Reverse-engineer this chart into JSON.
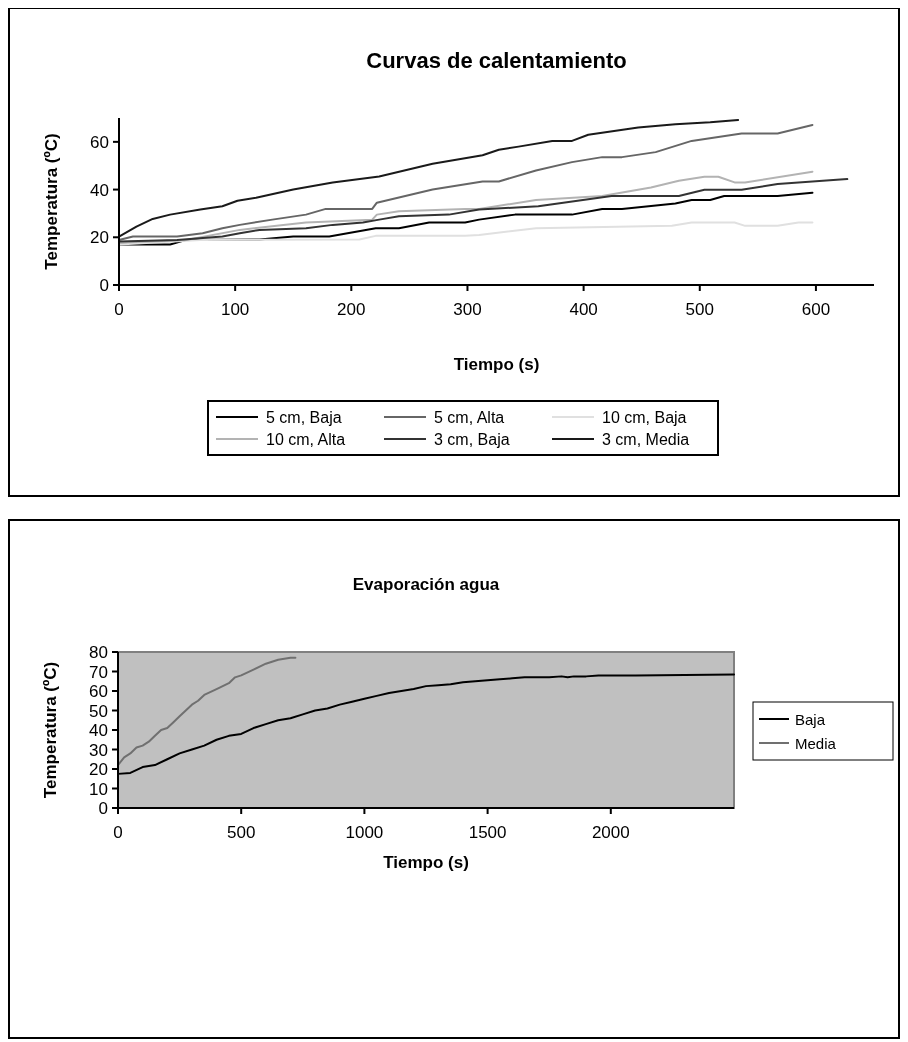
{
  "chart_data": [
    {
      "type": "line",
      "title": "Curvas de calentamiento",
      "xlabel": "Tiempo (s)",
      "ylabel": "Temperatura (ºC)",
      "xlim": [
        0,
        650
      ],
      "xticks": [
        0,
        100,
        200,
        300,
        400,
        500,
        600
      ],
      "ylim": [
        0,
        70
      ],
      "yticks": [
        0,
        20,
        40,
        60
      ],
      "legend": "bottom",
      "series": [
        {
          "name": "5 cm, Baja",
          "color": "#000000",
          "x": [
            0,
            44,
            58,
            121,
            150,
            181,
            221,
            241,
            267,
            298,
            310,
            341,
            390,
            416,
            433,
            479,
            493,
            509,
            521,
            567,
            597
          ],
          "values": [
            17,
            17,
            18.9,
            19.1,
            20.3,
            20.3,
            23.8,
            23.8,
            26.2,
            26.2,
            27.4,
            29.5,
            29.5,
            31.9,
            31.9,
            34.2,
            35.6,
            35.6,
            37.3,
            37.3,
            38.7
          ]
        },
        {
          "name": "5 cm, Alta",
          "color": "#666666",
          "x": [
            0,
            12,
            50,
            72,
            89,
            104,
            132,
            161,
            178,
            218,
            222,
            270,
            313,
            327,
            359,
            390,
            416,
            433,
            462,
            493,
            536,
            567,
            597
          ],
          "values": [
            18.9,
            20.3,
            20.3,
            21.7,
            23.8,
            25.2,
            27.4,
            29.5,
            31.9,
            31.9,
            34.5,
            40,
            43.4,
            43.4,
            48,
            51.5,
            53.6,
            53.6,
            55.7,
            60.4,
            63.5,
            63.5,
            67.1
          ]
        },
        {
          "name": "10 cm, Baja",
          "color": "#e0e0e0",
          "x": [
            0,
            70,
            207,
            221,
            298,
            310,
            359,
            476,
            493,
            530,
            539,
            567,
            585,
            597
          ],
          "values": [
            17,
            18.9,
            19.1,
            20.6,
            20.6,
            21,
            23.8,
            24.8,
            26.2,
            26.2,
            24.8,
            24.8,
            26.2,
            26.2
          ]
        },
        {
          "name": "10 cm, Alta",
          "color": "#b3b3b3",
          "x": [
            0,
            58,
            104,
            161,
            218,
            222,
            241,
            298,
            310,
            359,
            416,
            458,
            482,
            504,
            516,
            530,
            539,
            597
          ],
          "values": [
            17.7,
            18.9,
            23.1,
            26.2,
            27.4,
            29.5,
            30.9,
            31.9,
            31.9,
            35.6,
            37.3,
            40.9,
            43.7,
            45.4,
            45.4,
            43,
            43,
            47.5
          ]
        },
        {
          "name": "3 cm, Baja",
          "color": "#333333",
          "x": [
            0,
            50,
            89,
            104,
            121,
            161,
            184,
            210,
            224,
            241,
            284,
            310,
            361,
            424,
            482,
            504,
            536,
            567,
            627
          ],
          "values": [
            18.2,
            18.9,
            20.3,
            21.7,
            23.1,
            23.8,
            25.2,
            26.2,
            27.4,
            28.8,
            29.5,
            31.6,
            33,
            37.3,
            37.3,
            39.9,
            39.9,
            42.3,
            44.4
          ]
        },
        {
          "name": "3 cm, Media",
          "color": "#1a1a1a",
          "x": [
            0,
            15,
            29,
            44,
            70,
            89,
            102,
            118,
            150,
            184,
            224,
            270,
            313,
            327,
            344,
            373,
            390,
            404,
            447,
            479,
            509,
            533
          ],
          "values": [
            20.3,
            24.5,
            27.7,
            29.5,
            31.6,
            33,
            35.3,
            36.6,
            40,
            43,
            45.5,
            50.8,
            54.4,
            56.7,
            58,
            60.4,
            60.4,
            63,
            66,
            67.4,
            68.2,
            69.2
          ]
        }
      ]
    },
    {
      "type": "line",
      "title": "Evaporación agua",
      "xlabel": "Tiempo (s)",
      "ylabel": "Temperatura (ºC)",
      "xlim": [
        0,
        2500
      ],
      "xticks": [
        0,
        500,
        1000,
        1500,
        2000
      ],
      "ylim": [
        0,
        80
      ],
      "yticks": [
        0,
        10,
        20,
        30,
        40,
        50,
        60,
        70,
        80
      ],
      "legend": "right",
      "series": [
        {
          "name": "Baja",
          "color": "#000000",
          "x": [
            0,
            50,
            100,
            150,
            200,
            250,
            300,
            350,
            400,
            450,
            500,
            550,
            600,
            650,
            700,
            750,
            800,
            850,
            900,
            950,
            1000,
            1050,
            1100,
            1150,
            1200,
            1250,
            1300,
            1350,
            1400,
            1450,
            1500,
            1550,
            1600,
            1650,
            1700,
            1750,
            1800,
            1825,
            1850,
            1900,
            1950,
            2000,
            2100,
            2500
          ],
          "values": [
            17.5,
            18,
            21,
            22,
            25,
            28,
            30,
            32,
            35,
            37,
            38,
            41,
            43,
            45,
            46,
            48,
            50,
            51,
            53,
            54.5,
            56,
            57.5,
            59,
            60,
            61,
            62.5,
            63,
            63.5,
            64.5,
            65,
            65.5,
            66,
            66.5,
            67,
            67,
            67,
            67.5,
            67,
            67.5,
            67.5,
            68,
            68,
            68,
            68.5
          ]
        },
        {
          "name": "Media",
          "color": "#707070",
          "x": [
            0,
            25,
            50,
            75,
            100,
            125,
            150,
            175,
            200,
            225,
            250,
            275,
            300,
            325,
            350,
            400,
            450,
            475,
            500,
            550,
            600,
            650,
            700,
            720
          ],
          "values": [
            22,
            26,
            28,
            31,
            32,
            34,
            37,
            40,
            41,
            44,
            47,
            50,
            53,
            55,
            58,
            61,
            64,
            67,
            68,
            71,
            74,
            76,
            77,
            77
          ]
        }
      ]
    }
  ]
}
